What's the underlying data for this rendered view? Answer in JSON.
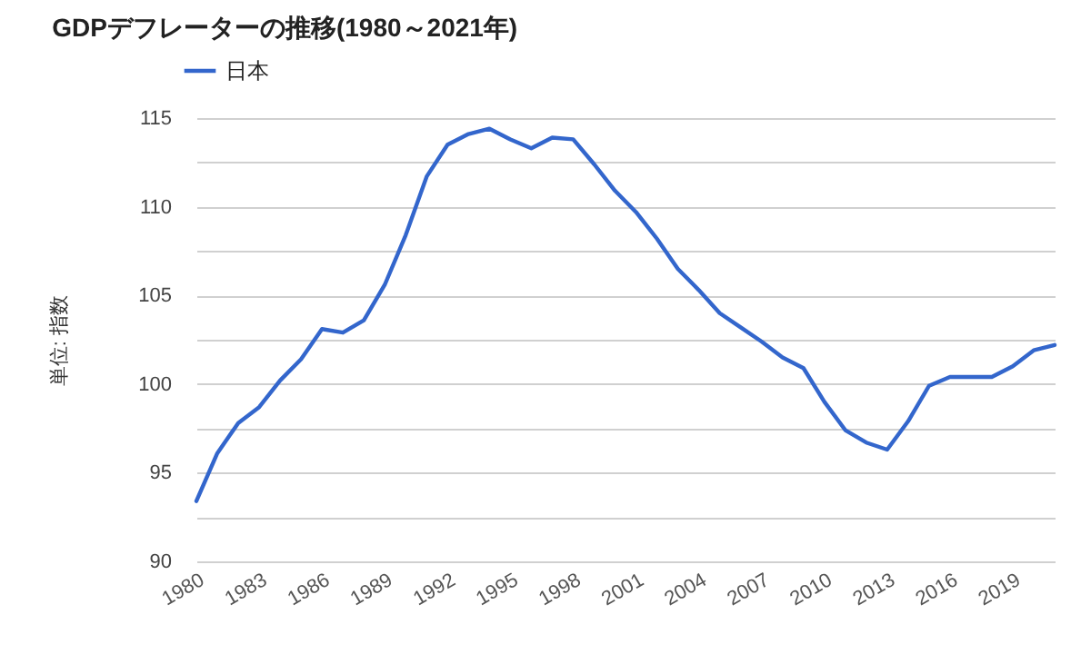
{
  "chart_data": {
    "type": "line",
    "title": "GDPデフレーターの推移(1980～2021年)",
    "ylabel": "単位: 指数",
    "x": [
      1980,
      1981,
      1982,
      1983,
      1984,
      1985,
      1986,
      1987,
      1988,
      1989,
      1990,
      1991,
      1992,
      1993,
      1994,
      1995,
      1996,
      1997,
      1998,
      1999,
      2000,
      2001,
      2002,
      2003,
      2004,
      2005,
      2006,
      2007,
      2008,
      2009,
      2010,
      2011,
      2012,
      2013,
      2014,
      2015,
      2016,
      2017,
      2018,
      2019,
      2020,
      2021
    ],
    "series": [
      {
        "name": "日本",
        "color": "#3366cc",
        "values": [
          93.4,
          96.1,
          97.8,
          98.7,
          100.2,
          101.4,
          103.1,
          102.9,
          103.6,
          105.6,
          108.4,
          111.7,
          113.5,
          114.1,
          114.4,
          113.8,
          113.3,
          113.9,
          113.8,
          112.4,
          110.9,
          109.7,
          108.2,
          106.5,
          105.3,
          104.0,
          103.2,
          102.4,
          101.5,
          100.9,
          99.0,
          97.4,
          96.7,
          96.3,
          97.9,
          99.9,
          100.4,
          100.4,
          100.4,
          101.0,
          101.9,
          102.2
        ]
      }
    ],
    "xlim": [
      1980,
      2021
    ],
    "xticks": [
      1980,
      1983,
      1986,
      1989,
      1992,
      1995,
      1998,
      2001,
      2004,
      2007,
      2010,
      2013,
      2016,
      2019
    ],
    "ylim": [
      90,
      115
    ],
    "yticks": [
      90,
      {
        "value": 92.5,
        "label": null
      },
      95,
      {
        "value": 97.5,
        "label": null
      },
      100,
      {
        "value": 102.5,
        "label": null
      },
      105,
      {
        "value": 107.5,
        "label": null
      },
      110,
      {
        "value": 112.5,
        "label": null
      },
      115
    ],
    "grid": "y",
    "legend": "top left",
    "line_style": "solid",
    "marker": "none"
  }
}
